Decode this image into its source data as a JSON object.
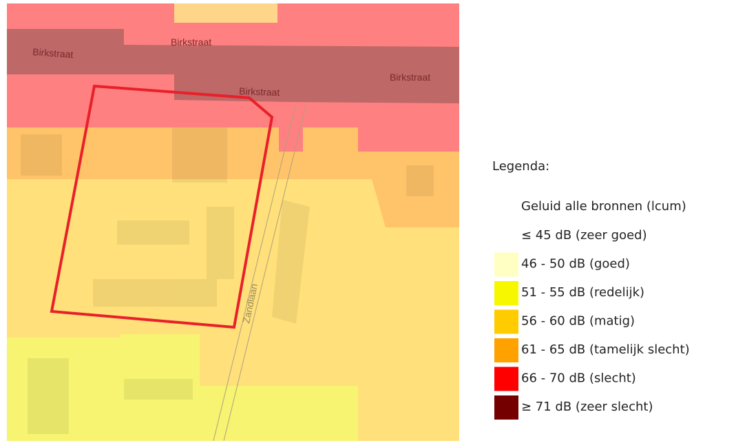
{
  "map": {
    "street_labels": [
      "Birkstraat",
      "Birkstraat",
      "Birkstraat",
      "Birkstraat",
      "Zandlaan"
    ]
  },
  "legend": {
    "title": "Legenda:",
    "subtitle": "Geluid alle bronnen (lcum)",
    "items": [
      {
        "label": "≤ 45 dB (zeer goed)"
      },
      {
        "label": "46 - 50 dB (goed)",
        "color": "#ffffc4"
      },
      {
        "label": "51 - 55 dB (redelijk)",
        "color": "#f7f700"
      },
      {
        "label": "56 - 60 dB (matig)",
        "color": "#ffcc00"
      },
      {
        "label": "61 - 65 dB (tamelijk slecht)",
        "color": "#ffa200"
      },
      {
        "label": "66 - 70 dB (slecht)",
        "color": "#ff0000"
      },
      {
        "label": "≥ 71 dB (zeer slecht)",
        "color": "#740000"
      }
    ]
  }
}
